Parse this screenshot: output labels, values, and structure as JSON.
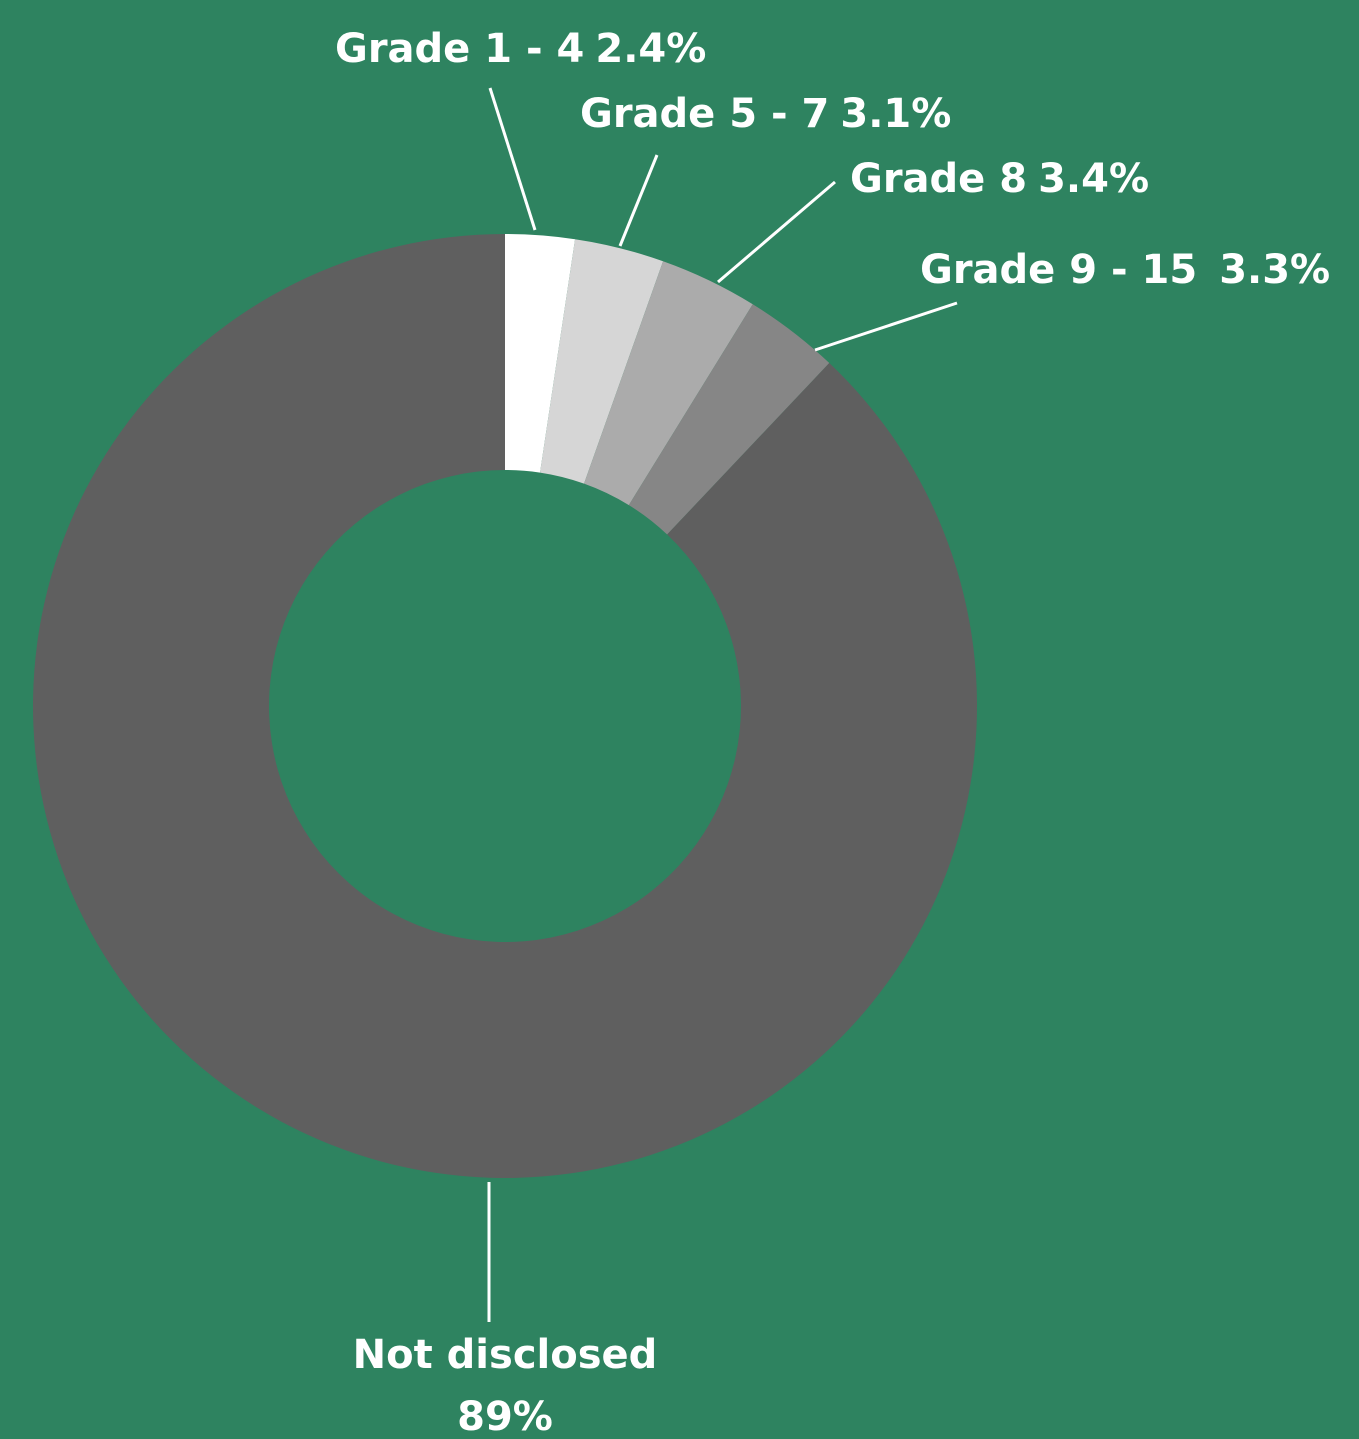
{
  "chart_data": {
    "type": "donut",
    "categories": [
      "Grade 1 - 4",
      "Grade 5 - 7",
      "Grade 8",
      "Grade 9 - 15",
      "Not disclosed"
    ],
    "values": [
      2.4,
      3.1,
      3.4,
      3.3,
      89
    ],
    "value_labels": [
      "2.4%",
      "3.1%",
      "3.4%",
      "3.3%",
      "89%"
    ],
    "colors": [
      "#ffffff",
      "#d6d6d6",
      "#ababab",
      "#868686",
      "#5f5f5f"
    ]
  }
}
